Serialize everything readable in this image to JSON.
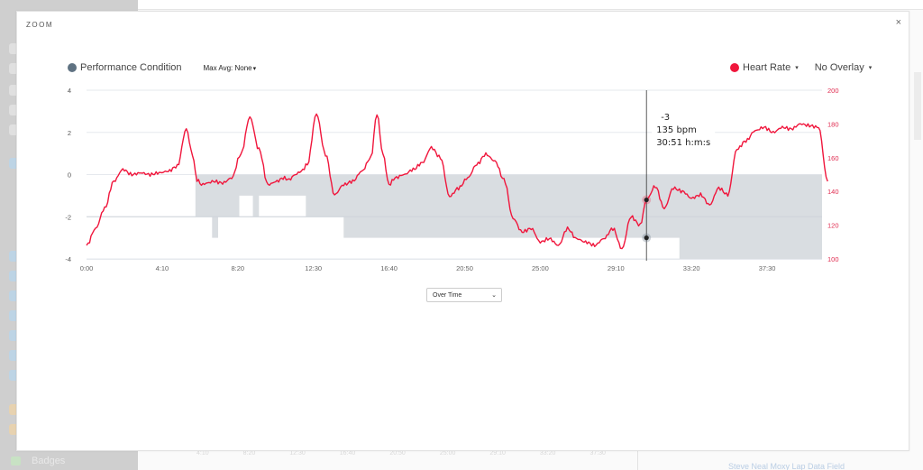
{
  "background": {
    "sidebar_bottom_item": "Badges",
    "axis_ticks": [
      "4:10",
      "8:20",
      "12:30",
      "16:40",
      "20:50",
      "25:00",
      "29:10",
      "33:20",
      "37:30"
    ],
    "link_text": "Steve Neal Moxy Lap Data Field"
  },
  "modal": {
    "title": "ZOOM",
    "close_label": "×",
    "left_metric": {
      "label": "Performance Condition",
      "color": "#5f7282"
    },
    "max_avg": {
      "label": "Max Avg: None",
      "caret": "▾"
    },
    "right_metric": {
      "label": "Heart Rate",
      "color": "#f0163c",
      "caret": "▾"
    },
    "overlay": {
      "label": "No Overlay",
      "caret": "▾"
    },
    "view_select": {
      "value": "Over Time",
      "caret": "⌄"
    },
    "tooltip": {
      "performance": "-3",
      "heart_rate": "135 bpm",
      "time": "30:51 h:m:s"
    }
  },
  "chart_data": {
    "type": "line",
    "title": "",
    "xlabel": "",
    "ylabel_left": "Performance Condition",
    "ylabel_right": "Heart Rate",
    "x_ticks": [
      "0:00",
      "4:10",
      "8:20",
      "12:30",
      "16:40",
      "20:50",
      "25:00",
      "29:10",
      "33:20",
      "37:30"
    ],
    "y_left_ticks": [
      4,
      2,
      0,
      -2,
      -4
    ],
    "y_right_ticks": [
      200,
      180,
      160,
      140,
      120,
      100
    ],
    "ylim_left": [
      -4,
      4
    ],
    "ylim_right": [
      100,
      200
    ],
    "grid": true,
    "series": [
      {
        "name": "Heart Rate",
        "axis": "right",
        "color": "#f0163c",
        "x_seconds": [
          0,
          30,
          60,
          90,
          120,
          150,
          180,
          210,
          240,
          270,
          300,
          330,
          350,
          365,
          380,
          400,
          420,
          450,
          480,
          510,
          540,
          570,
          600,
          630,
          650,
          670,
          690,
          710,
          730,
          760,
          790,
          820,
          850,
          880,
          910,
          940,
          960,
          980,
          1000,
          1020,
          1050,
          1080,
          1110,
          1140,
          1170,
          1200,
          1230,
          1260,
          1290,
          1320,
          1350,
          1380,
          1410,
          1440,
          1470,
          1500,
          1530,
          1560,
          1590,
          1620,
          1650,
          1680,
          1710,
          1740,
          1770,
          1800,
          1830,
          1851,
          1880,
          1910,
          1940,
          1970,
          2000,
          2030,
          2060,
          2090,
          2120,
          2150,
          2180,
          2210,
          2240,
          2270,
          2300,
          2330,
          2360,
          2390,
          2420,
          2450
        ],
        "values": [
          108,
          118,
          130,
          146,
          153,
          150,
          151,
          150,
          151,
          152,
          155,
          177,
          162,
          147,
          144,
          145,
          146,
          145,
          148,
          162,
          184,
          165,
          144,
          146,
          148,
          147,
          150,
          152,
          156,
          186,
          162,
          138,
          144,
          146,
          152,
          160,
          186,
          162,
          144,
          148,
          150,
          153,
          157,
          166,
          160,
          137,
          142,
          148,
          156,
          162,
          158,
          147,
          124,
          116,
          118,
          110,
          112,
          108,
          118,
          112,
          110,
          108,
          112,
          118,
          106,
          125,
          120,
          135,
          143,
          130,
          142,
          140,
          136,
          138,
          132,
          142,
          138,
          165,
          170,
          176,
          178,
          175,
          178,
          177,
          180,
          179,
          178,
          146
        ]
      },
      {
        "name": "Performance Condition",
        "axis": "left",
        "color": "#5f7282",
        "type": "step-area",
        "x_seconds": [
          0,
          360,
          415,
          435,
          505,
          550,
          570,
          725,
          850,
          1960,
          2450
        ],
        "values": [
          null,
          -2,
          -3,
          -2,
          -1,
          -2,
          -1,
          -2,
          -3,
          -4,
          -4
        ]
      }
    ],
    "crosshair": {
      "x_seconds": 1851,
      "heart_rate": 135,
      "performance": -3
    }
  }
}
